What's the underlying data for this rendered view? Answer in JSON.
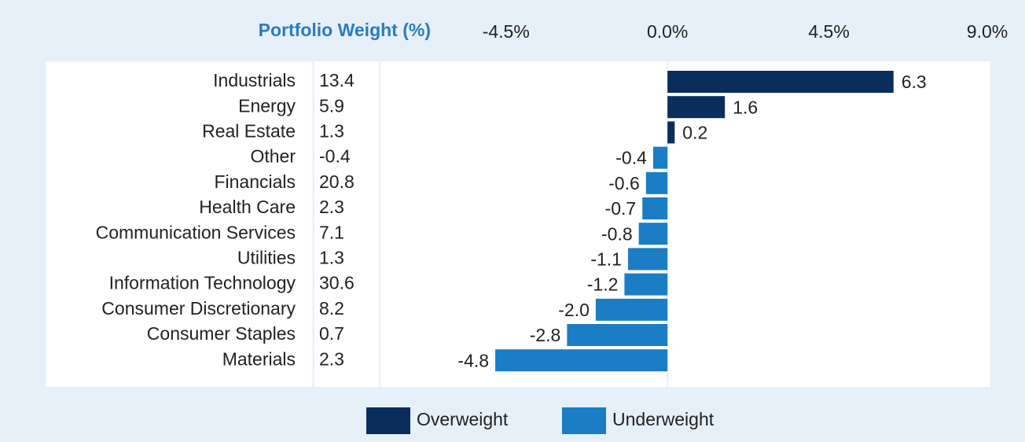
{
  "chart_data": {
    "type": "bar",
    "orientation": "horizontal",
    "column_header": "Portfolio Weight (%)",
    "categories": [
      "Industrials",
      "Energy",
      "Real Estate",
      "Other",
      "Financials",
      "Health Care",
      "Communication Services",
      "Utilities",
      "Information Technology",
      "Consumer Discretionary",
      "Consumer Staples",
      "Materials"
    ],
    "weights": [
      13.4,
      5.9,
      1.3,
      -0.4,
      20.8,
      2.3,
      7.1,
      1.3,
      30.6,
      8.2,
      0.7,
      2.3
    ],
    "values": [
      6.3,
      1.6,
      0.2,
      -0.4,
      -0.6,
      -0.7,
      -0.8,
      -1.1,
      -1.2,
      -2.0,
      -2.8,
      -4.8
    ],
    "value_labels": [
      "6.3",
      "1.6",
      "0.2",
      "-0.4",
      "-0.6",
      "-0.7",
      "-0.8",
      "-1.1",
      "-1.2",
      "-2.0",
      "-2.8",
      "-4.8"
    ],
    "xlim": [
      -8,
      9
    ],
    "xticks": [
      {
        "value": -4.5,
        "label": "-4.5%"
      },
      {
        "value": 0,
        "label": "0.0%"
      },
      {
        "value": 4.5,
        "label": "4.5%"
      },
      {
        "value": 9,
        "label": "9.0%"
      }
    ],
    "legend": [
      {
        "name": "Overweight",
        "color": "#0b2d5c"
      },
      {
        "name": "Underweight",
        "color": "#1b7dc3"
      }
    ]
  }
}
